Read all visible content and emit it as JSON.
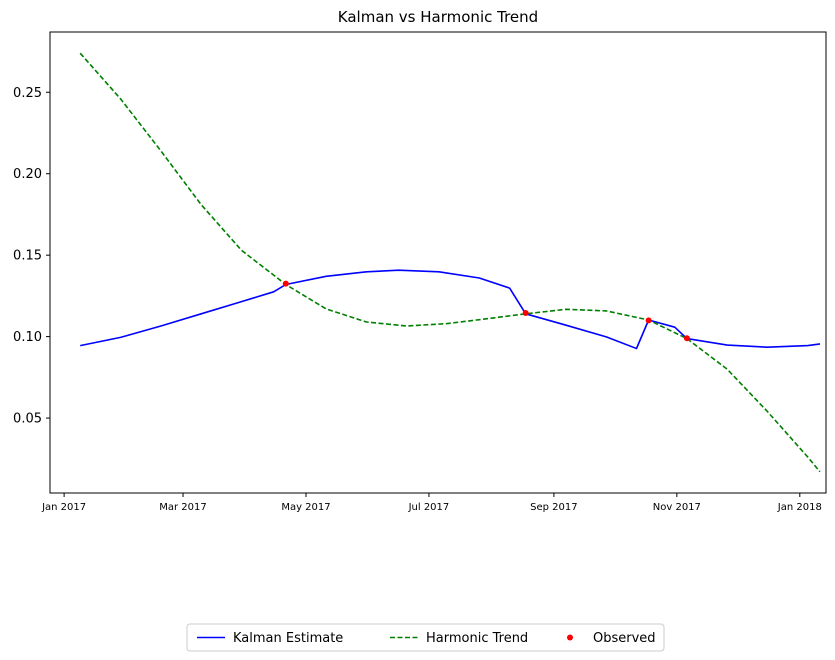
{
  "chart_data": {
    "type": "line",
    "title": "Kalman vs Harmonic Trend",
    "xlabel": "",
    "ylabel": "",
    "x_ticks": [
      "2017-01-01",
      "2017-03-01",
      "2017-05-01",
      "2017-07-01",
      "2017-09-01",
      "2017-11-01",
      "2018-01-01"
    ],
    "x_tick_labels": [
      "Jan 2017",
      "Mar 2017",
      "May 2017",
      "Jul 2017",
      "Sep 2017",
      "Nov 2017",
      "Jan 2018"
    ],
    "y_ticks": [
      0.05,
      0.1,
      0.15,
      0.2,
      0.25
    ],
    "y_tick_labels": [
      "0.05",
      "0.10",
      "0.15",
      "0.20",
      "0.25"
    ],
    "xlim": [
      "2016-12-25",
      "2018-01-14"
    ],
    "ylim": [
      0.004,
      0.287
    ],
    "grid": false,
    "legend_position": "bottom-center",
    "series": [
      {
        "name": "Kalman Estimate",
        "style": "solid",
        "color": "#0000ff",
        "points": [
          [
            "2017-01-09",
            0.0945
          ],
          [
            "2017-01-29",
            0.0995
          ],
          [
            "2017-02-18",
            0.1065
          ],
          [
            "2017-03-10",
            0.114
          ],
          [
            "2017-03-30",
            0.1215
          ],
          [
            "2017-04-15",
            0.1275
          ],
          [
            "2017-04-21",
            0.132
          ],
          [
            "2017-05-11",
            0.137
          ],
          [
            "2017-05-31",
            0.1398
          ],
          [
            "2017-06-16",
            0.1408
          ],
          [
            "2017-07-06",
            0.1398
          ],
          [
            "2017-07-26",
            0.136
          ],
          [
            "2017-08-10",
            0.1298
          ],
          [
            "2017-08-18",
            0.114
          ],
          [
            "2017-09-07",
            0.107
          ],
          [
            "2017-09-27",
            0.0998
          ],
          [
            "2017-10-12",
            0.0927
          ],
          [
            "2017-10-18",
            0.1102
          ],
          [
            "2017-10-31",
            0.1058
          ],
          [
            "2017-11-06",
            0.0988
          ],
          [
            "2017-11-26",
            0.0948
          ],
          [
            "2017-12-16",
            0.0935
          ],
          [
            "2018-01-05",
            0.0945
          ],
          [
            "2018-01-11",
            0.0955
          ]
        ]
      },
      {
        "name": "Harmonic Trend",
        "style": "dashed",
        "color": "#008000",
        "points": [
          [
            "2017-01-09",
            0.274
          ],
          [
            "2017-01-29",
            0.246
          ],
          [
            "2017-02-18",
            0.214
          ],
          [
            "2017-03-10",
            0.181
          ],
          [
            "2017-03-30",
            0.153
          ],
          [
            "2017-04-21",
            0.132
          ],
          [
            "2017-05-11",
            0.117
          ],
          [
            "2017-05-31",
            0.109
          ],
          [
            "2017-06-20",
            0.1065
          ],
          [
            "2017-07-10",
            0.108
          ],
          [
            "2017-07-30",
            0.111
          ],
          [
            "2017-08-18",
            0.114
          ],
          [
            "2017-09-07",
            0.1168
          ],
          [
            "2017-09-27",
            0.1158
          ],
          [
            "2017-10-18",
            0.1102
          ],
          [
            "2017-11-06",
            0.0988
          ],
          [
            "2017-11-26",
            0.08
          ],
          [
            "2017-12-16",
            0.054
          ],
          [
            "2018-01-05",
            0.026
          ],
          [
            "2018-01-11",
            0.017
          ]
        ]
      },
      {
        "name": "Observed",
        "style": "points",
        "color": "#ff0000",
        "points": [
          [
            "2017-04-21",
            0.1325
          ],
          [
            "2017-08-18",
            0.1145
          ],
          [
            "2017-10-18",
            0.11
          ],
          [
            "2017-11-06",
            0.099
          ]
        ]
      }
    ]
  }
}
